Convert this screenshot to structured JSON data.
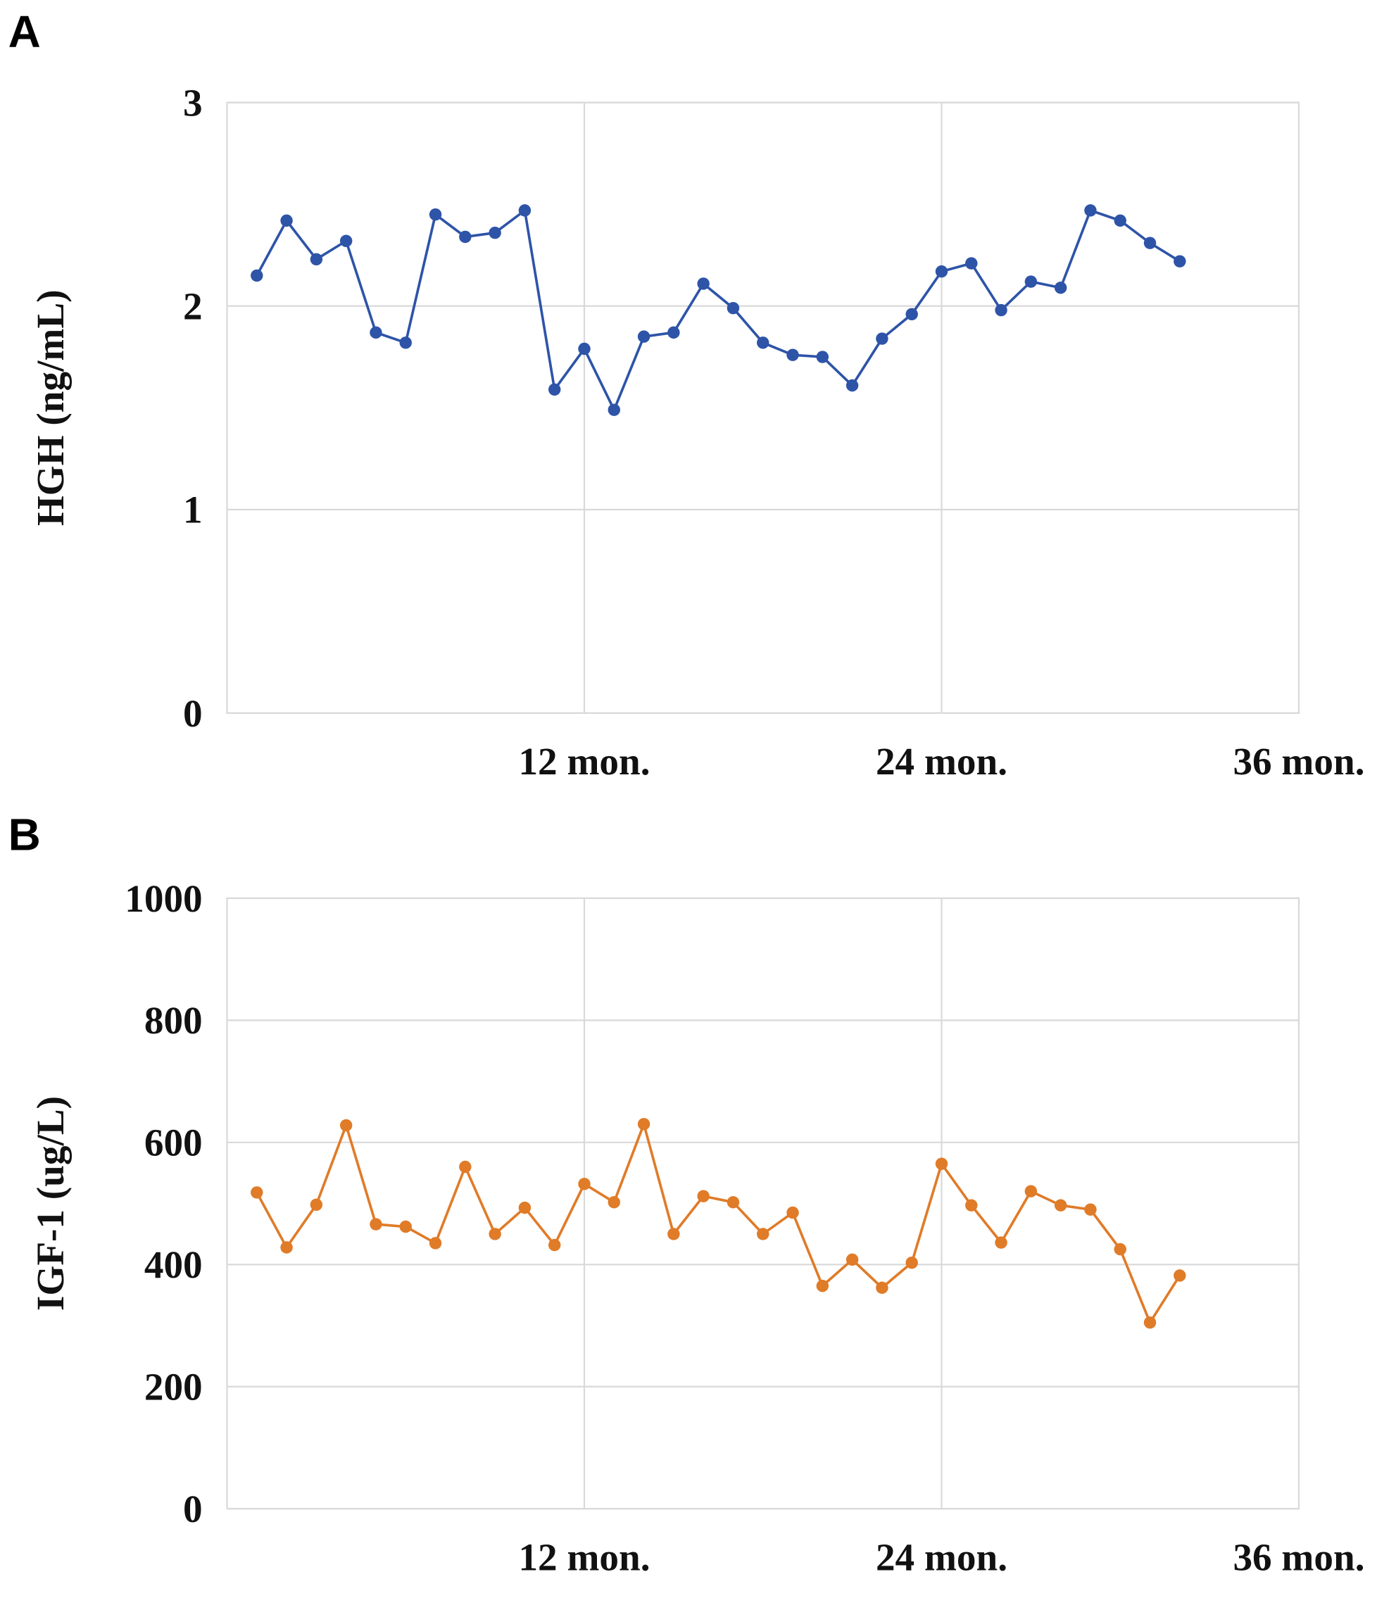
{
  "chart_data": [
    {
      "type": "line",
      "panel_label": "A",
      "ylabel": "HGH (ng/mL)",
      "x": [
        1,
        2,
        3,
        4,
        5,
        6,
        7,
        8,
        9,
        10,
        11,
        12,
        13,
        14,
        15,
        16,
        17,
        18,
        19,
        20,
        21,
        22,
        23,
        24,
        25,
        26,
        27,
        28,
        29,
        30,
        31,
        32
      ],
      "series": [
        {
          "color": "#2e54a8",
          "values": [
            2.15,
            2.42,
            2.23,
            2.32,
            1.87,
            1.82,
            2.45,
            2.34,
            2.36,
            2.47,
            1.59,
            1.79,
            1.49,
            1.85,
            1.87,
            2.11,
            1.99,
            1.82,
            1.76,
            1.75,
            1.61,
            1.84,
            1.96,
            2.17,
            2.21,
            1.98,
            2.12,
            2.09,
            2.47,
            2.42,
            2.31,
            2.22
          ]
        }
      ],
      "xlim": [
        0,
        36
      ],
      "xticks": [
        {
          "value": 12,
          "label": "12 mon."
        },
        {
          "value": 24,
          "label": "24 mon."
        },
        {
          "value": 36,
          "label": "36 mon."
        }
      ],
      "ylim": [
        0,
        3
      ],
      "yticks": [
        0,
        1,
        2,
        3
      ],
      "grid": true
    },
    {
      "type": "line",
      "panel_label": "B",
      "ylabel": "IGF-1 (ug/L)",
      "x": [
        1,
        2,
        3,
        4,
        5,
        6,
        7,
        8,
        9,
        10,
        11,
        12,
        13,
        14,
        15,
        16,
        17,
        18,
        19,
        20,
        21,
        22,
        23,
        24,
        25,
        26,
        27,
        28,
        29,
        30,
        31,
        32
      ],
      "series": [
        {
          "color": "#e07b28",
          "values": [
            518,
            428,
            498,
            628,
            466,
            462,
            435,
            560,
            450,
            493,
            432,
            532,
            502,
            630,
            450,
            512,
            502,
            450,
            485,
            365,
            408,
            362,
            403,
            565,
            497,
            436,
            520,
            497,
            490,
            425,
            305,
            382
          ]
        }
      ],
      "xlim": [
        0,
        36
      ],
      "xticks": [
        {
          "value": 12,
          "label": "12 mon."
        },
        {
          "value": 24,
          "label": "24 mon."
        },
        {
          "value": 36,
          "label": "36 mon."
        }
      ],
      "ylim": [
        0,
        1000
      ],
      "yticks": [
        0,
        200,
        400,
        600,
        800,
        1000
      ],
      "grid": true
    }
  ]
}
